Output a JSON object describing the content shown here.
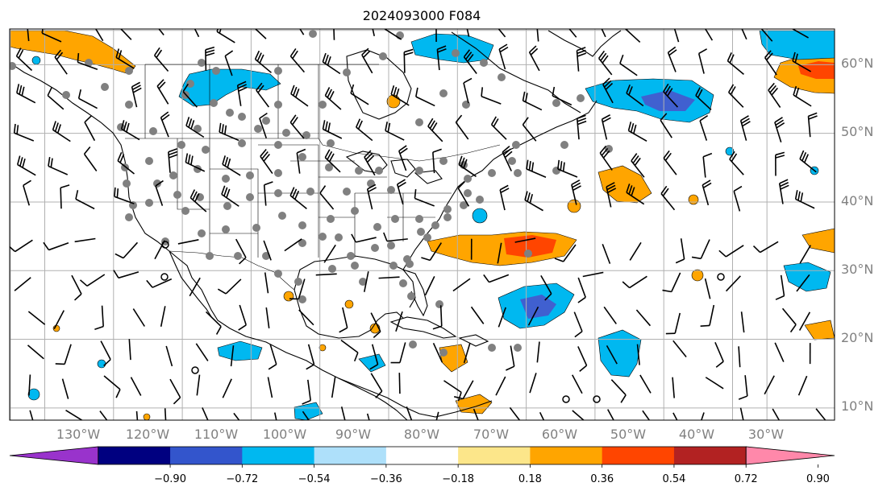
{
  "title": "2024093000 F084",
  "map": {
    "lon_labels": [
      "130°W",
      "120°W",
      "110°W",
      "100°W",
      "90°W",
      "80°W",
      "70°W",
      "60°W",
      "50°W",
      "40°W",
      "30°W"
    ],
    "lat_labels": [
      "60°N",
      "50°N",
      "40°N",
      "30°N",
      "20°N",
      "10°N"
    ],
    "lon_grid_deg": [
      -135,
      -130,
      -120,
      -110,
      -100,
      -90,
      -80,
      -70,
      -60,
      -50,
      -40,
      -30,
      -25
    ],
    "lat_grid_deg": [
      65,
      60,
      50,
      40,
      30,
      20,
      10,
      8
    ]
  },
  "colorbar": {
    "ticks": [
      "−0.90",
      "−0.72",
      "−0.54",
      "−0.36",
      "−0.18",
      "0.18",
      "0.36",
      "0.54",
      "0.72",
      "0.90"
    ],
    "colors": [
      "#9933cc",
      "#000080",
      "#3355cc",
      "#00b8f0",
      "#aee0fa",
      "#ffffff",
      "#fce68a",
      "#ffa500",
      "#ff4500",
      "#b22222",
      "#ff88aa"
    ],
    "extend": "both"
  },
  "colors": {
    "orange": "#ffa500",
    "red_orange": "#ff4500",
    "deep_sky_blue": "#00b8f0",
    "royal_blue": "#4060d0",
    "station_gray": "#808080",
    "coast": "#000000",
    "grid": "#b0b0b0"
  }
}
